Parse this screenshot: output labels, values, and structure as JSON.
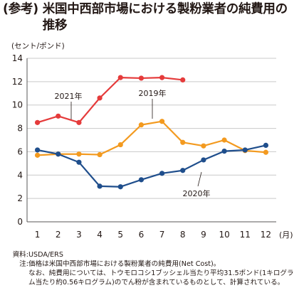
{
  "title": {
    "prefix": "(参考)",
    "text": "米国中西部市場における製粉業者の純費用の推移"
  },
  "unit_label": "(セント/ポンド)",
  "x_unit_label": "(月)",
  "notes": {
    "source_label": "資料:",
    "source_text": "USDA/ERS",
    "note_label": "注:",
    "note_line1": "価格は米国中西部市場における製粉業者の純費用(Net Cost)。",
    "note_line2": "なお、純費用については、トウモロコシ1ブッシェル当たり平均31.5ポンド(1キログラム当たり約0.56キログラム)のでん粉が含まれているものとして、計算されている。"
  },
  "colors": {
    "2019": "#f39a1f",
    "2020": "#1f4e8c",
    "2021": "#e53b3b",
    "grid": "#c9c9c9",
    "axis": "#595757"
  },
  "chart_data": {
    "type": "line",
    "x": [
      1,
      2,
      3,
      4,
      5,
      6,
      7,
      8,
      9,
      10,
      11,
      12
    ],
    "ylim": [
      0,
      14
    ],
    "yticks": [
      0,
      2,
      4,
      6,
      8,
      10,
      12,
      14
    ],
    "grid": true,
    "series": [
      {
        "name": "2019年",
        "values": [
          5.7,
          5.8,
          5.8,
          5.75,
          6.6,
          8.3,
          8.6,
          6.8,
          6.5,
          7.0,
          6.1,
          5.95
        ]
      },
      {
        "name": "2020年",
        "values": [
          6.15,
          5.8,
          5.1,
          3.05,
          3.0,
          3.6,
          4.15,
          4.4,
          5.3,
          6.05,
          6.15,
          6.55
        ]
      },
      {
        "name": "2021年",
        "values": [
          8.5,
          9.05,
          8.5,
          10.6,
          12.35,
          12.3,
          12.35,
          12.15,
          null,
          null,
          null,
          null
        ]
      }
    ]
  }
}
